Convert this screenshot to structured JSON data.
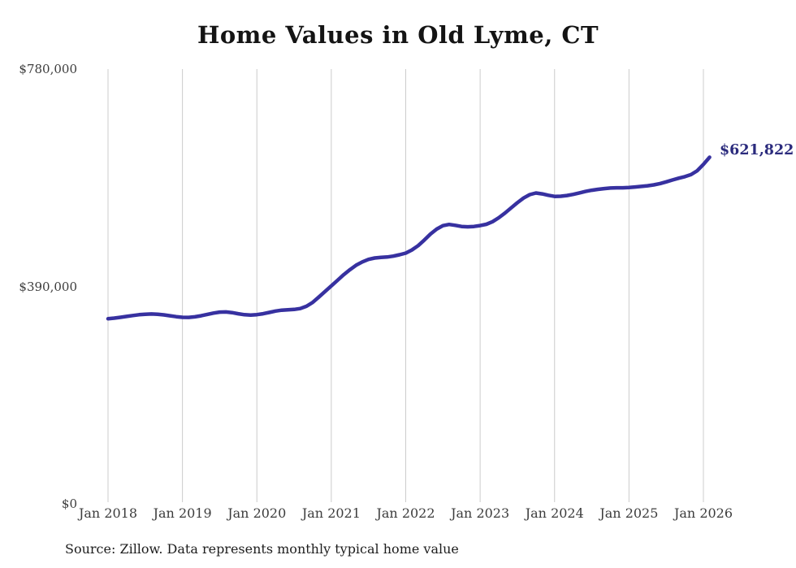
{
  "chart": {
    "title": "Home Values in Old Lyme, CT",
    "end_label": "$621,822",
    "source": "Source: Zillow. Data represents monthly typical home value",
    "colors": {
      "line": "#3731a0",
      "end_label": "#2b2b7d",
      "grid": "#cccccc",
      "tick_text": "#3c3c3c",
      "title_text": "#141414"
    }
  },
  "chart_data": {
    "type": "line",
    "title": "Home Values in Old Lyme, CT",
    "xlabel": "",
    "ylabel": "",
    "legend": "none",
    "grid": "vertical gridlines at each January",
    "ylim": [
      0,
      780000
    ],
    "y_ticks": [
      {
        "label": "$0",
        "value": 0
      },
      {
        "label": "$390,000",
        "value": 390000
      },
      {
        "label": "$780,000",
        "value": 780000
      }
    ],
    "x_tick_labels": [
      "Jan 2018",
      "Jan 2019",
      "Jan 2020",
      "Jan 2021",
      "Jan 2022",
      "Jan 2023",
      "Jan 2024",
      "Jan 2025",
      "Jan 2026"
    ],
    "x_start_month": "2018-01",
    "x_end_month": "2026-02",
    "end_value": 621822,
    "end_value_label": "$621,822",
    "series": [
      {
        "name": "Typical home value (monthly)",
        "monthly_values": [
          332000,
          333200,
          334600,
          336200,
          337800,
          339200,
          340200,
          340600,
          340200,
          339000,
          337400,
          335800,
          334600,
          334400,
          335400,
          337400,
          339800,
          342200,
          344000,
          344200,
          343000,
          341000,
          339200,
          338600,
          339400,
          341000,
          343400,
          345800,
          347400,
          348200,
          348800,
          350400,
          354400,
          361400,
          371000,
          381000,
          391000,
          401000,
          411000,
          420000,
          428000,
          434000,
          438500,
          441000,
          442200,
          442800,
          444400,
          446800,
          449800,
          455400,
          463200,
          473200,
          484000,
          493000,
          499000,
          501200,
          499600,
          497600,
          497000,
          497600,
          499200,
          501600,
          506200,
          513200,
          521600,
          531000,
          540200,
          548600,
          554800,
          557600,
          556000,
          553600,
          551600,
          551800,
          553200,
          555200,
          557800,
          560400,
          562600,
          564200,
          565600,
          566600,
          567000,
          567000,
          567400,
          568400,
          569400,
          570600,
          572200,
          574600,
          577600,
          581000,
          584200,
          587000,
          590600,
          597600,
          609000,
          621822
        ]
      }
    ]
  }
}
